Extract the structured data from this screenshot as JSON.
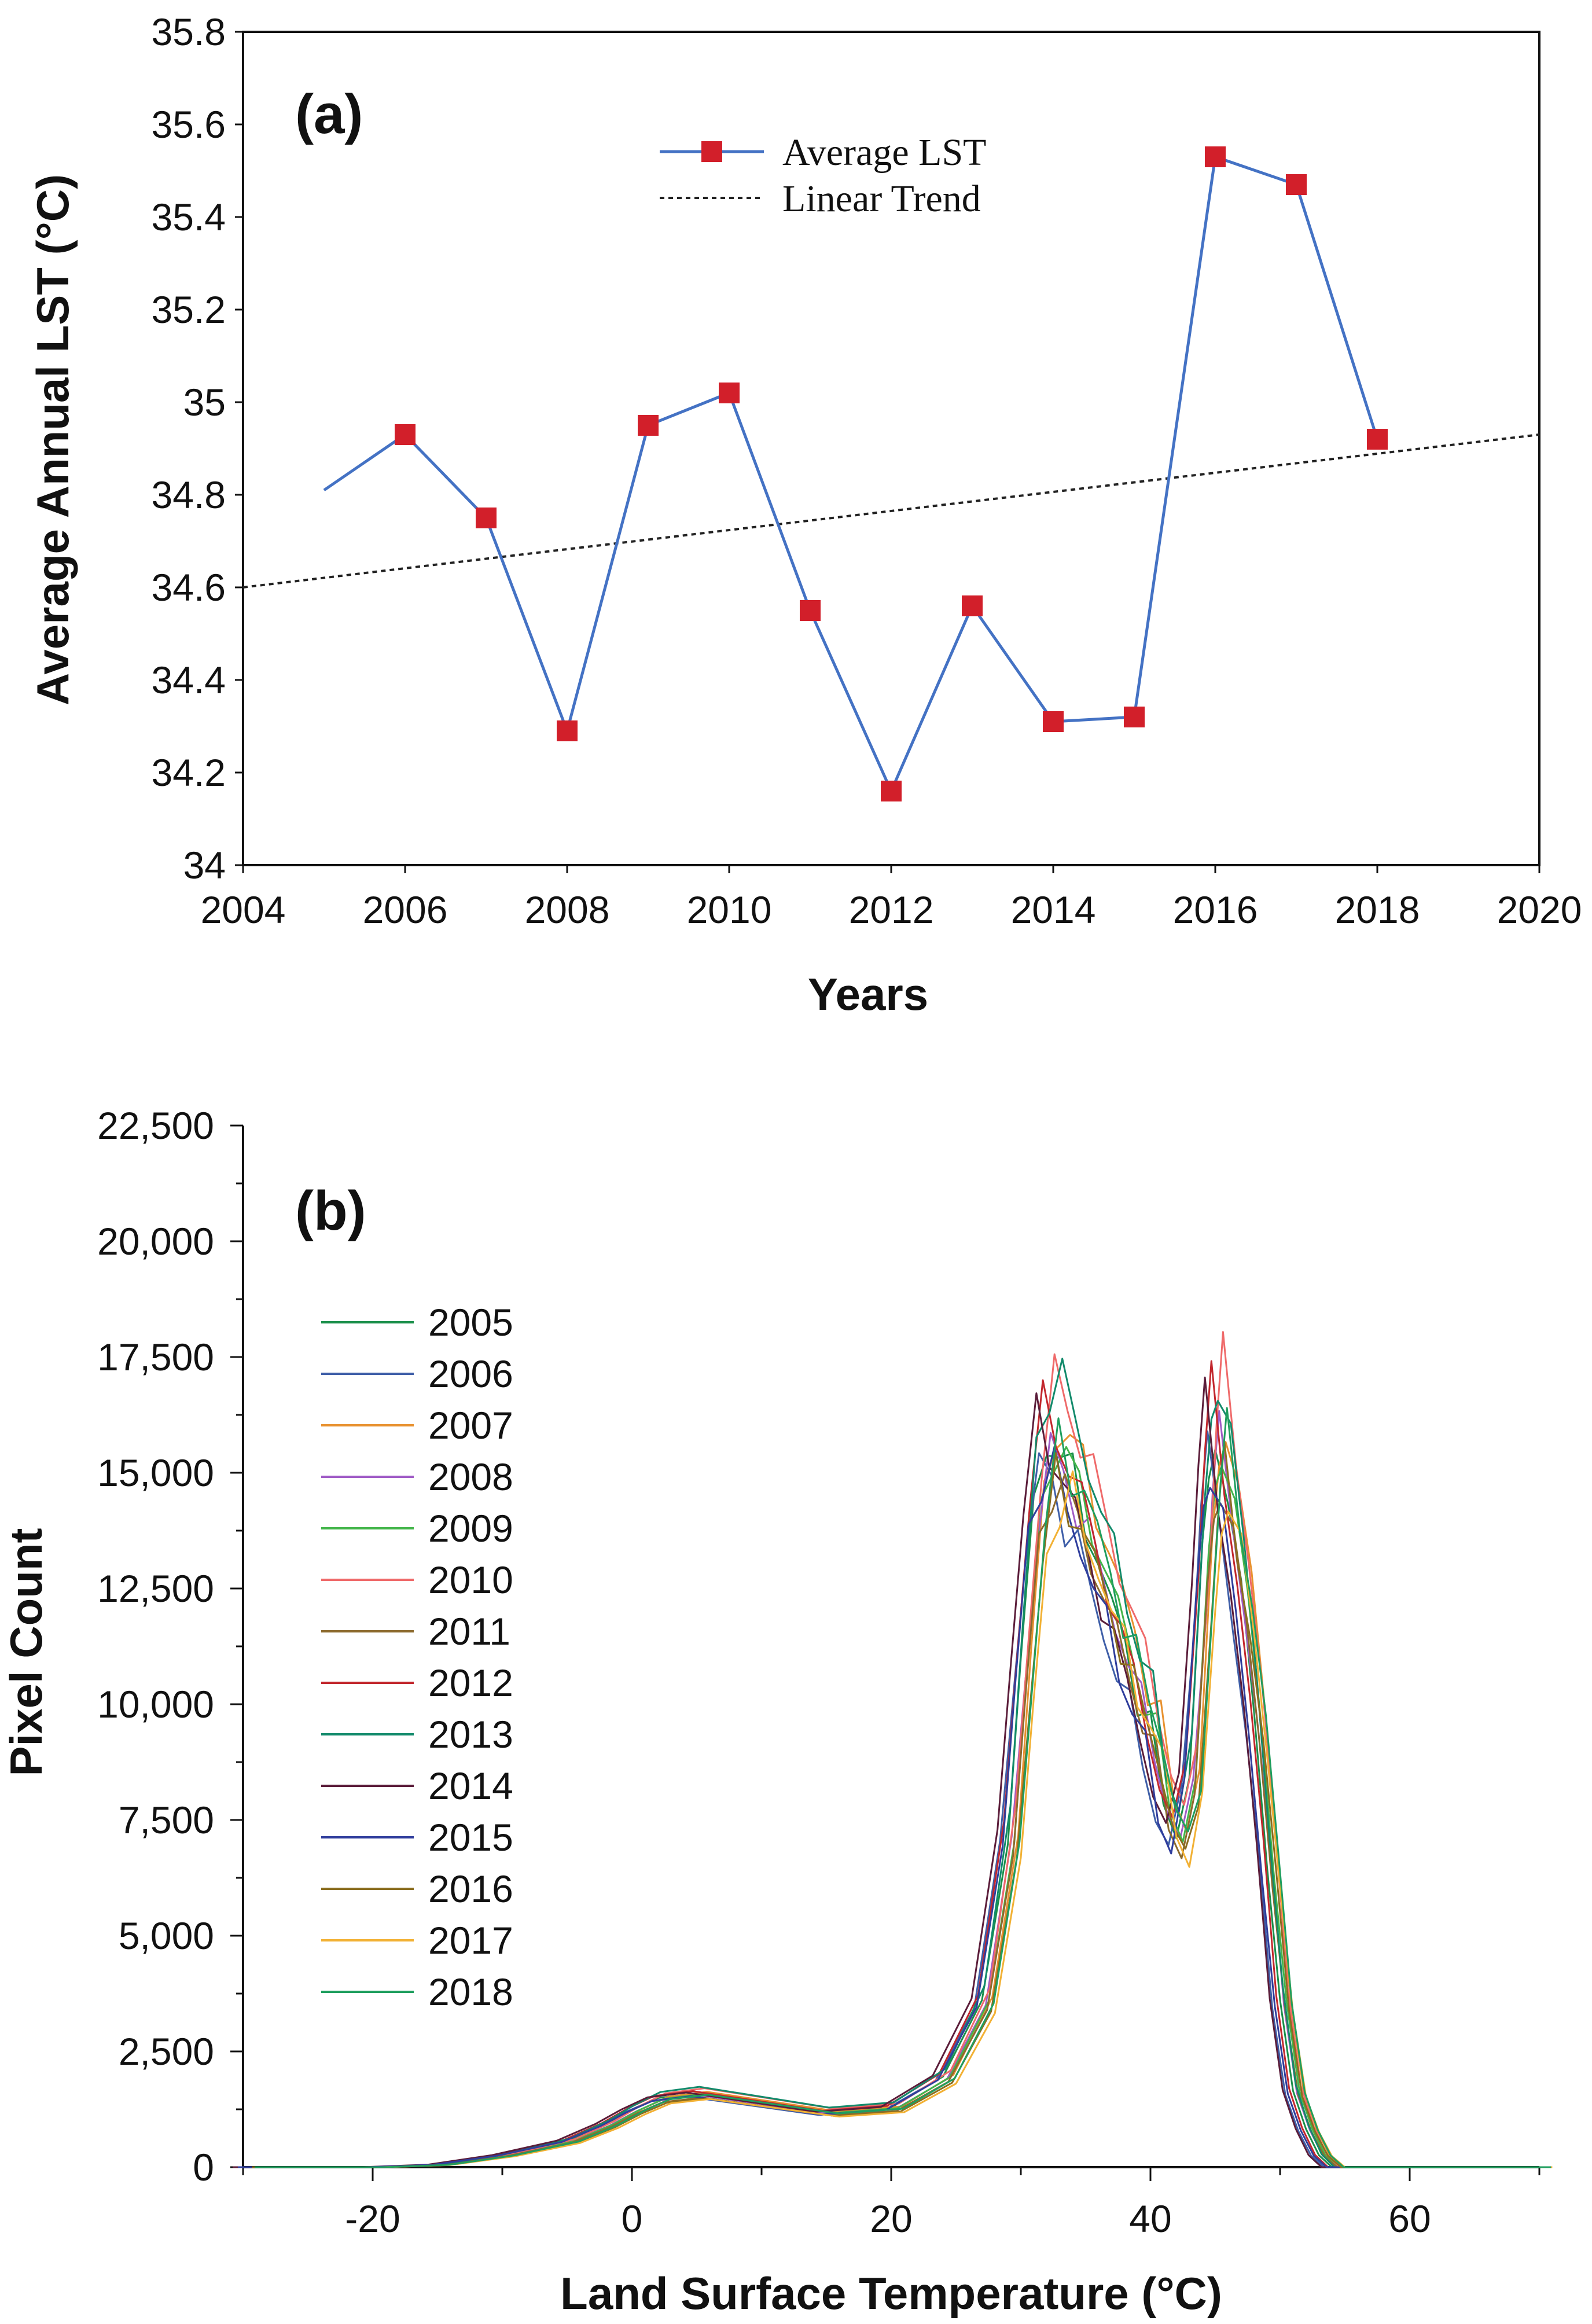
{
  "colors": {
    "line_a": "#4472c4",
    "marker_a": "#d21f2a",
    "trend": "#222222",
    "axis": "#111111",
    "series_b": [
      "#1a8f4a",
      "#3f5fa8",
      "#e8912f",
      "#a05cc6",
      "#43b54a",
      "#ef6a6a",
      "#8c6a2d",
      "#c2272d",
      "#128a6b",
      "#5b1d3a",
      "#2f3d9c",
      "#8a6d1f",
      "#f2b134",
      "#1f9e5e"
    ]
  },
  "chart_data": [
    {
      "type": "line",
      "panel_label": "(a)",
      "title": "",
      "xlabel": "Years",
      "ylabel": "Average Annual LST  (°C)",
      "xlim": [
        2004,
        2020
      ],
      "ylim": [
        34,
        35.8
      ],
      "x_ticks": [
        "2004",
        "2006",
        "2008",
        "2010",
        "2012",
        "2014",
        "2016",
        "2018",
        "2020"
      ],
      "y_ticks": [
        "34",
        "34.2",
        "34.4",
        "34.6",
        "34.8",
        "35",
        "35.2",
        "35.4",
        "35.6",
        "35.8"
      ],
      "series": [
        {
          "name": "Average LST",
          "x": [
            2005,
            2006,
            2007,
            2008,
            2009,
            2010,
            2011,
            2012,
            2013,
            2014,
            2015,
            2016,
            2017,
            2018
          ],
          "values": [
            34.81,
            34.93,
            34.75,
            34.29,
            34.95,
            35.02,
            34.55,
            34.16,
            34.56,
            34.31,
            34.32,
            35.53,
            35.47,
            34.92
          ],
          "markers": [
            false,
            true,
            true,
            true,
            true,
            true,
            true,
            true,
            true,
            true,
            true,
            true,
            true,
            true
          ]
        },
        {
          "name": "Linear Trend",
          "x": [
            2004,
            2020
          ],
          "values": [
            34.6,
            34.93
          ]
        }
      ],
      "legend": [
        "Average LST",
        "Linear Trend"
      ],
      "legend_position": "top-center"
    },
    {
      "type": "line",
      "panel_label": "(b)",
      "title": "",
      "xlabel": "Land Surface Temperature  (°C)",
      "ylabel": "Pixel Count",
      "xlim": [
        -30,
        70
      ],
      "ylim": [
        0,
        22500
      ],
      "x_ticks": [
        "-20",
        "0",
        "20",
        "40",
        "60"
      ],
      "y_ticks": [
        "0",
        "2,500",
        "5,000",
        "7,500",
        "10,000",
        "12,500",
        "15,000",
        "17,500",
        "20,000",
        "22,500"
      ],
      "legend_position": "top-left",
      "base_profile": {
        "x": [
          -30,
          -20,
          -15,
          -10,
          -5,
          -2,
          0,
          2,
          5,
          10,
          15,
          20,
          24,
          27,
          29,
          30,
          31,
          32,
          33,
          34,
          35,
          36,
          37,
          38,
          39,
          40,
          41,
          42,
          43,
          44,
          44.5,
          45,
          46,
          47,
          48,
          49,
          50,
          51,
          52,
          53,
          54,
          55,
          60,
          70
        ],
        "values": [
          0,
          0,
          50,
          250,
          550,
          900,
          1200,
          1450,
          1550,
          1350,
          1150,
          1250,
          1900,
          3500,
          7000,
          10500,
          13800,
          15300,
          15100,
          14300,
          13600,
          12700,
          11800,
          10900,
          10000,
          9200,
          7600,
          7000,
          8300,
          12500,
          14500,
          15600,
          14000,
          12000,
          9500,
          6500,
          3500,
          1600,
          800,
          250,
          0,
          0,
          0,
          0
        ]
      },
      "series": [
        {
          "name": "2005",
          "shift": 0.0,
          "scale": 1.03
        },
        {
          "name": "2006",
          "shift": -0.6,
          "scale": 0.98
        },
        {
          "name": "2007",
          "shift": 0.8,
          "scale": 1.05
        },
        {
          "name": "2008",
          "shift": 0.3,
          "scale": 1.0
        },
        {
          "name": "2009",
          "shift": 0.5,
          "scale": 1.02
        },
        {
          "name": "2010",
          "shift": 0.6,
          "scale": 1.1
        },
        {
          "name": "2011",
          "shift": 0.4,
          "scale": 0.97
        },
        {
          "name": "2012",
          "shift": -0.3,
          "scale": 1.06
        },
        {
          "name": "2013",
          "shift": 0.2,
          "scale": 1.12
        },
        {
          "name": "2014",
          "shift": -0.8,
          "scale": 1.04
        },
        {
          "name": "2015",
          "shift": -0.4,
          "scale": 0.99
        },
        {
          "name": "2016",
          "shift": 0.7,
          "scale": 0.96
        },
        {
          "name": "2017",
          "shift": 1.0,
          "scale": 0.95
        },
        {
          "name": "2018",
          "shift": 0.9,
          "scale": 1.01
        }
      ]
    }
  ]
}
